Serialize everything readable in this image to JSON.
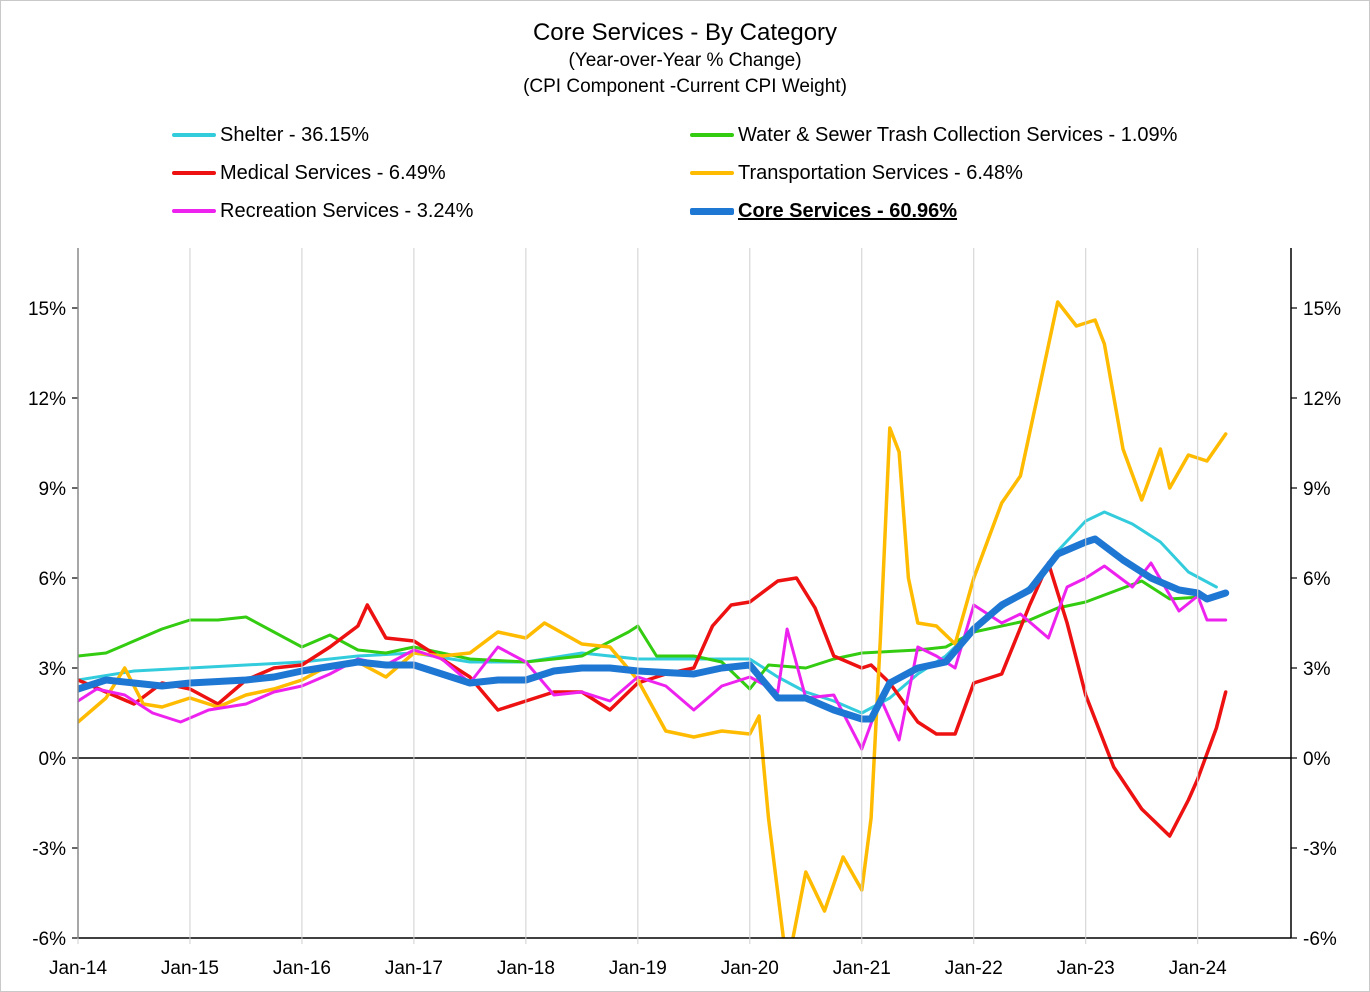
{
  "chart_data": {
    "type": "line",
    "title": "Core Services - By Category",
    "subtitle_lines": [
      "(Year-over-Year % Change)",
      "(CPI Component -Current CPI Weight)"
    ],
    "y_ticks": [
      "15%",
      "12%",
      "9%",
      "6%",
      "3%",
      "0%",
      "-3%",
      "-6%"
    ],
    "y_tick_values": [
      15,
      12,
      9,
      6,
      3,
      0,
      -3,
      -6
    ],
    "ylim": [
      -6,
      17
    ],
    "x_ticks": [
      "Jan-14",
      "Jan-15",
      "Jan-16",
      "Jan-17",
      "Jan-18",
      "Jan-19",
      "Jan-20",
      "Jan-21",
      "Jan-22",
      "Jan-23",
      "Jan-24"
    ],
    "xlim": [
      "2014-01",
      "2024-11"
    ],
    "grid": false,
    "legend_position": "top",
    "series": [
      {
        "name": "Shelter - 36.15%",
        "color": "#33ccdd",
        "width": 3,
        "points": [
          [
            "2014-01",
            2.6
          ],
          [
            "2014-07",
            2.9
          ],
          [
            "2015-01",
            3.0
          ],
          [
            "2015-07",
            3.1
          ],
          [
            "2016-01",
            3.2
          ],
          [
            "2016-07",
            3.4
          ],
          [
            "2017-01",
            3.5
          ],
          [
            "2017-07",
            3.2
          ],
          [
            "2018-01",
            3.2
          ],
          [
            "2018-07",
            3.5
          ],
          [
            "2019-01",
            3.3
          ],
          [
            "2019-07",
            3.3
          ],
          [
            "2020-01",
            3.3
          ],
          [
            "2020-04",
            2.7
          ],
          [
            "2020-07",
            2.2
          ],
          [
            "2020-10",
            1.9
          ],
          [
            "2021-01",
            1.5
          ],
          [
            "2021-04",
            2.0
          ],
          [
            "2021-07",
            2.8
          ],
          [
            "2021-10",
            3.4
          ],
          [
            "2022-01",
            4.3
          ],
          [
            "2022-04",
            5.0
          ],
          [
            "2022-07",
            5.7
          ],
          [
            "2022-10",
            6.9
          ],
          [
            "2023-01",
            7.9
          ],
          [
            "2023-03",
            8.2
          ],
          [
            "2023-06",
            7.8
          ],
          [
            "2023-09",
            7.2
          ],
          [
            "2023-12",
            6.2
          ],
          [
            "2024-03",
            5.7
          ]
        ]
      },
      {
        "name": "Water & Sewer Trash Collection Services - 1.09%",
        "color": "#33cc11",
        "width": 3,
        "points": [
          [
            "2014-01",
            3.4
          ],
          [
            "2014-04",
            3.5
          ],
          [
            "2014-07",
            3.9
          ],
          [
            "2014-10",
            4.3
          ],
          [
            "2015-01",
            4.6
          ],
          [
            "2015-04",
            4.6
          ],
          [
            "2015-07",
            4.7
          ],
          [
            "2015-10",
            4.2
          ],
          [
            "2016-01",
            3.7
          ],
          [
            "2016-04",
            4.1
          ],
          [
            "2016-07",
            3.6
          ],
          [
            "2016-10",
            3.5
          ],
          [
            "2017-01",
            3.7
          ],
          [
            "2017-07",
            3.3
          ],
          [
            "2018-01",
            3.2
          ],
          [
            "2018-07",
            3.4
          ],
          [
            "2018-12",
            4.2
          ],
          [
            "2019-01",
            4.4
          ],
          [
            "2019-03",
            3.4
          ],
          [
            "2019-07",
            3.4
          ],
          [
            "2019-10",
            3.2
          ],
          [
            "2020-01",
            2.3
          ],
          [
            "2020-03",
            3.1
          ],
          [
            "2020-07",
            3.0
          ],
          [
            "2020-10",
            3.3
          ],
          [
            "2021-01",
            3.5
          ],
          [
            "2021-07",
            3.6
          ],
          [
            "2021-10",
            3.7
          ],
          [
            "2022-01",
            4.2
          ],
          [
            "2022-07",
            4.6
          ],
          [
            "2022-10",
            5.0
          ],
          [
            "2023-01",
            5.2
          ],
          [
            "2023-07",
            5.9
          ],
          [
            "2023-10",
            5.3
          ],
          [
            "2024-03",
            5.4
          ]
        ]
      },
      {
        "name": "Medical Services - 6.49%",
        "color": "#ee1111",
        "width": 3.5,
        "points": [
          [
            "2014-01",
            2.6
          ],
          [
            "2014-04",
            2.2
          ],
          [
            "2014-07",
            1.8
          ],
          [
            "2014-10",
            2.5
          ],
          [
            "2015-01",
            2.3
          ],
          [
            "2015-04",
            1.8
          ],
          [
            "2015-07",
            2.6
          ],
          [
            "2015-10",
            3.0
          ],
          [
            "2016-01",
            3.1
          ],
          [
            "2016-04",
            3.7
          ],
          [
            "2016-07",
            4.4
          ],
          [
            "2016-08",
            5.1
          ],
          [
            "2016-10",
            4.0
          ],
          [
            "2017-01",
            3.9
          ],
          [
            "2017-03",
            3.5
          ],
          [
            "2017-07",
            2.7
          ],
          [
            "2017-10",
            1.6
          ],
          [
            "2018-01",
            1.9
          ],
          [
            "2018-04",
            2.2
          ],
          [
            "2018-07",
            2.2
          ],
          [
            "2018-10",
            1.6
          ],
          [
            "2019-01",
            2.5
          ],
          [
            "2019-04",
            2.8
          ],
          [
            "2019-07",
            3.0
          ],
          [
            "2019-09",
            4.4
          ],
          [
            "2019-11",
            5.1
          ],
          [
            "2020-01",
            5.2
          ],
          [
            "2020-04",
            5.9
          ],
          [
            "2020-06",
            6.0
          ],
          [
            "2020-08",
            5.0
          ],
          [
            "2020-10",
            3.4
          ],
          [
            "2021-01",
            3.0
          ],
          [
            "2021-02",
            3.1
          ],
          [
            "2021-04",
            2.5
          ],
          [
            "2021-07",
            1.2
          ],
          [
            "2021-09",
            0.8
          ],
          [
            "2021-11",
            0.8
          ],
          [
            "2022-01",
            2.5
          ],
          [
            "2022-04",
            2.8
          ],
          [
            "2022-07",
            5.1
          ],
          [
            "2022-09",
            6.5
          ],
          [
            "2022-11",
            4.5
          ],
          [
            "2023-01",
            2.1
          ],
          [
            "2023-04",
            -0.3
          ],
          [
            "2023-07",
            -1.7
          ],
          [
            "2023-10",
            -2.6
          ],
          [
            "2023-12",
            -1.4
          ],
          [
            "2024-01",
            -0.7
          ],
          [
            "2024-03",
            1.0
          ],
          [
            "2024-04",
            2.2
          ]
        ]
      },
      {
        "name": "Transportation Services - 6.48%",
        "color": "#ffbb00",
        "width": 3.5,
        "points": [
          [
            "2014-01",
            1.2
          ],
          [
            "2014-04",
            2.0
          ],
          [
            "2014-06",
            3.0
          ],
          [
            "2014-08",
            1.8
          ],
          [
            "2014-10",
            1.7
          ],
          [
            "2015-01",
            2.0
          ],
          [
            "2015-04",
            1.7
          ],
          [
            "2015-07",
            2.1
          ],
          [
            "2015-10",
            2.3
          ],
          [
            "2016-01",
            2.6
          ],
          [
            "2016-04",
            3.1
          ],
          [
            "2016-07",
            3.2
          ],
          [
            "2016-10",
            2.7
          ],
          [
            "2017-01",
            3.5
          ],
          [
            "2017-04",
            3.4
          ],
          [
            "2017-07",
            3.5
          ],
          [
            "2017-10",
            4.2
          ],
          [
            "2018-01",
            4.0
          ],
          [
            "2018-03",
            4.5
          ],
          [
            "2018-07",
            3.8
          ],
          [
            "2018-10",
            3.7
          ],
          [
            "2019-01",
            2.6
          ],
          [
            "2019-04",
            0.9
          ],
          [
            "2019-07",
            0.7
          ],
          [
            "2019-10",
            0.9
          ],
          [
            "2020-01",
            0.8
          ],
          [
            "2020-02",
            1.4
          ],
          [
            "2020-03",
            -2.0
          ],
          [
            "2020-05",
            -7.0
          ],
          [
            "2020-07",
            -3.8
          ],
          [
            "2020-09",
            -5.1
          ],
          [
            "2020-11",
            -3.3
          ],
          [
            "2021-01",
            -4.4
          ],
          [
            "2021-02",
            -2.0
          ],
          [
            "2021-03",
            4.0
          ],
          [
            "2021-04",
            11.0
          ],
          [
            "2021-05",
            10.2
          ],
          [
            "2021-06",
            6.0
          ],
          [
            "2021-07",
            4.5
          ],
          [
            "2021-09",
            4.4
          ],
          [
            "2021-11",
            3.8
          ],
          [
            "2022-01",
            6.0
          ],
          [
            "2022-04",
            8.5
          ],
          [
            "2022-06",
            9.4
          ],
          [
            "2022-08",
            12.3
          ],
          [
            "2022-10",
            15.2
          ],
          [
            "2022-12",
            14.4
          ],
          [
            "2023-02",
            14.6
          ],
          [
            "2023-03",
            13.8
          ],
          [
            "2023-05",
            10.3
          ],
          [
            "2023-07",
            8.6
          ],
          [
            "2023-09",
            10.3
          ],
          [
            "2023-10",
            9.0
          ],
          [
            "2023-12",
            10.1
          ],
          [
            "2024-02",
            9.9
          ],
          [
            "2024-04",
            10.8
          ]
        ]
      },
      {
        "name": "Recreation Services - 3.24%",
        "color": "#ee22ee",
        "width": 3,
        "points": [
          [
            "2014-01",
            1.9
          ],
          [
            "2014-03",
            2.3
          ],
          [
            "2014-06",
            2.1
          ],
          [
            "2014-09",
            1.5
          ],
          [
            "2014-12",
            1.2
          ],
          [
            "2015-03",
            1.6
          ],
          [
            "2015-07",
            1.8
          ],
          [
            "2015-10",
            2.2
          ],
          [
            "2016-01",
            2.4
          ],
          [
            "2016-04",
            2.8
          ],
          [
            "2016-07",
            3.3
          ],
          [
            "2016-10",
            3.1
          ],
          [
            "2017-01",
            3.6
          ],
          [
            "2017-04",
            3.3
          ],
          [
            "2017-07",
            2.5
          ],
          [
            "2017-10",
            3.7
          ],
          [
            "2018-01",
            3.2
          ],
          [
            "2018-04",
            2.1
          ],
          [
            "2018-07",
            2.2
          ],
          [
            "2018-10",
            1.9
          ],
          [
            "2019-01",
            2.7
          ],
          [
            "2019-04",
            2.4
          ],
          [
            "2019-07",
            1.6
          ],
          [
            "2019-10",
            2.4
          ],
          [
            "2020-01",
            2.7
          ],
          [
            "2020-04",
            2.2
          ],
          [
            "2020-05",
            4.3
          ],
          [
            "2020-07",
            2.0
          ],
          [
            "2020-10",
            2.1
          ],
          [
            "2021-01",
            0.3
          ],
          [
            "2021-03",
            2.0
          ],
          [
            "2021-05",
            0.6
          ],
          [
            "2021-07",
            3.7
          ],
          [
            "2021-09",
            3.4
          ],
          [
            "2021-11",
            3.0
          ],
          [
            "2022-01",
            5.1
          ],
          [
            "2022-04",
            4.5
          ],
          [
            "2022-06",
            4.8
          ],
          [
            "2022-09",
            4.0
          ],
          [
            "2022-11",
            5.7
          ],
          [
            "2023-01",
            6.0
          ],
          [
            "2023-03",
            6.4
          ],
          [
            "2023-06",
            5.7
          ],
          [
            "2023-08",
            6.5
          ],
          [
            "2023-11",
            4.9
          ],
          [
            "2024-01",
            5.4
          ],
          [
            "2024-02",
            4.6
          ],
          [
            "2024-04",
            4.6
          ]
        ]
      },
      {
        "name": "Core Services - 60.96%",
        "color": "#1f77d4",
        "width": 7,
        "emphasis": true,
        "points": [
          [
            "2014-01",
            2.3
          ],
          [
            "2014-04",
            2.6
          ],
          [
            "2014-07",
            2.5
          ],
          [
            "2014-10",
            2.4
          ],
          [
            "2015-01",
            2.5
          ],
          [
            "2015-07",
            2.6
          ],
          [
            "2015-10",
            2.7
          ],
          [
            "2016-01",
            2.9
          ],
          [
            "2016-07",
            3.2
          ],
          [
            "2016-10",
            3.1
          ],
          [
            "2017-01",
            3.1
          ],
          [
            "2017-04",
            2.8
          ],
          [
            "2017-07",
            2.5
          ],
          [
            "2017-10",
            2.6
          ],
          [
            "2018-01",
            2.6
          ],
          [
            "2018-04",
            2.9
          ],
          [
            "2018-07",
            3.0
          ],
          [
            "2018-10",
            3.0
          ],
          [
            "2019-01",
            2.9
          ],
          [
            "2019-07",
            2.8
          ],
          [
            "2019-10",
            3.0
          ],
          [
            "2020-01",
            3.1
          ],
          [
            "2020-04",
            2.0
          ],
          [
            "2020-07",
            2.0
          ],
          [
            "2020-10",
            1.6
          ],
          [
            "2021-01",
            1.3
          ],
          [
            "2021-02",
            1.3
          ],
          [
            "2021-04",
            2.5
          ],
          [
            "2021-07",
            3.0
          ],
          [
            "2021-10",
            3.2
          ],
          [
            "2022-01",
            4.3
          ],
          [
            "2022-04",
            5.1
          ],
          [
            "2022-07",
            5.6
          ],
          [
            "2022-10",
            6.8
          ],
          [
            "2023-01",
            7.2
          ],
          [
            "2023-02",
            7.3
          ],
          [
            "2023-05",
            6.6
          ],
          [
            "2023-08",
            6.0
          ],
          [
            "2023-11",
            5.6
          ],
          [
            "2024-01",
            5.5
          ],
          [
            "2024-02",
            5.3
          ],
          [
            "2024-04",
            5.5
          ]
        ]
      }
    ]
  }
}
